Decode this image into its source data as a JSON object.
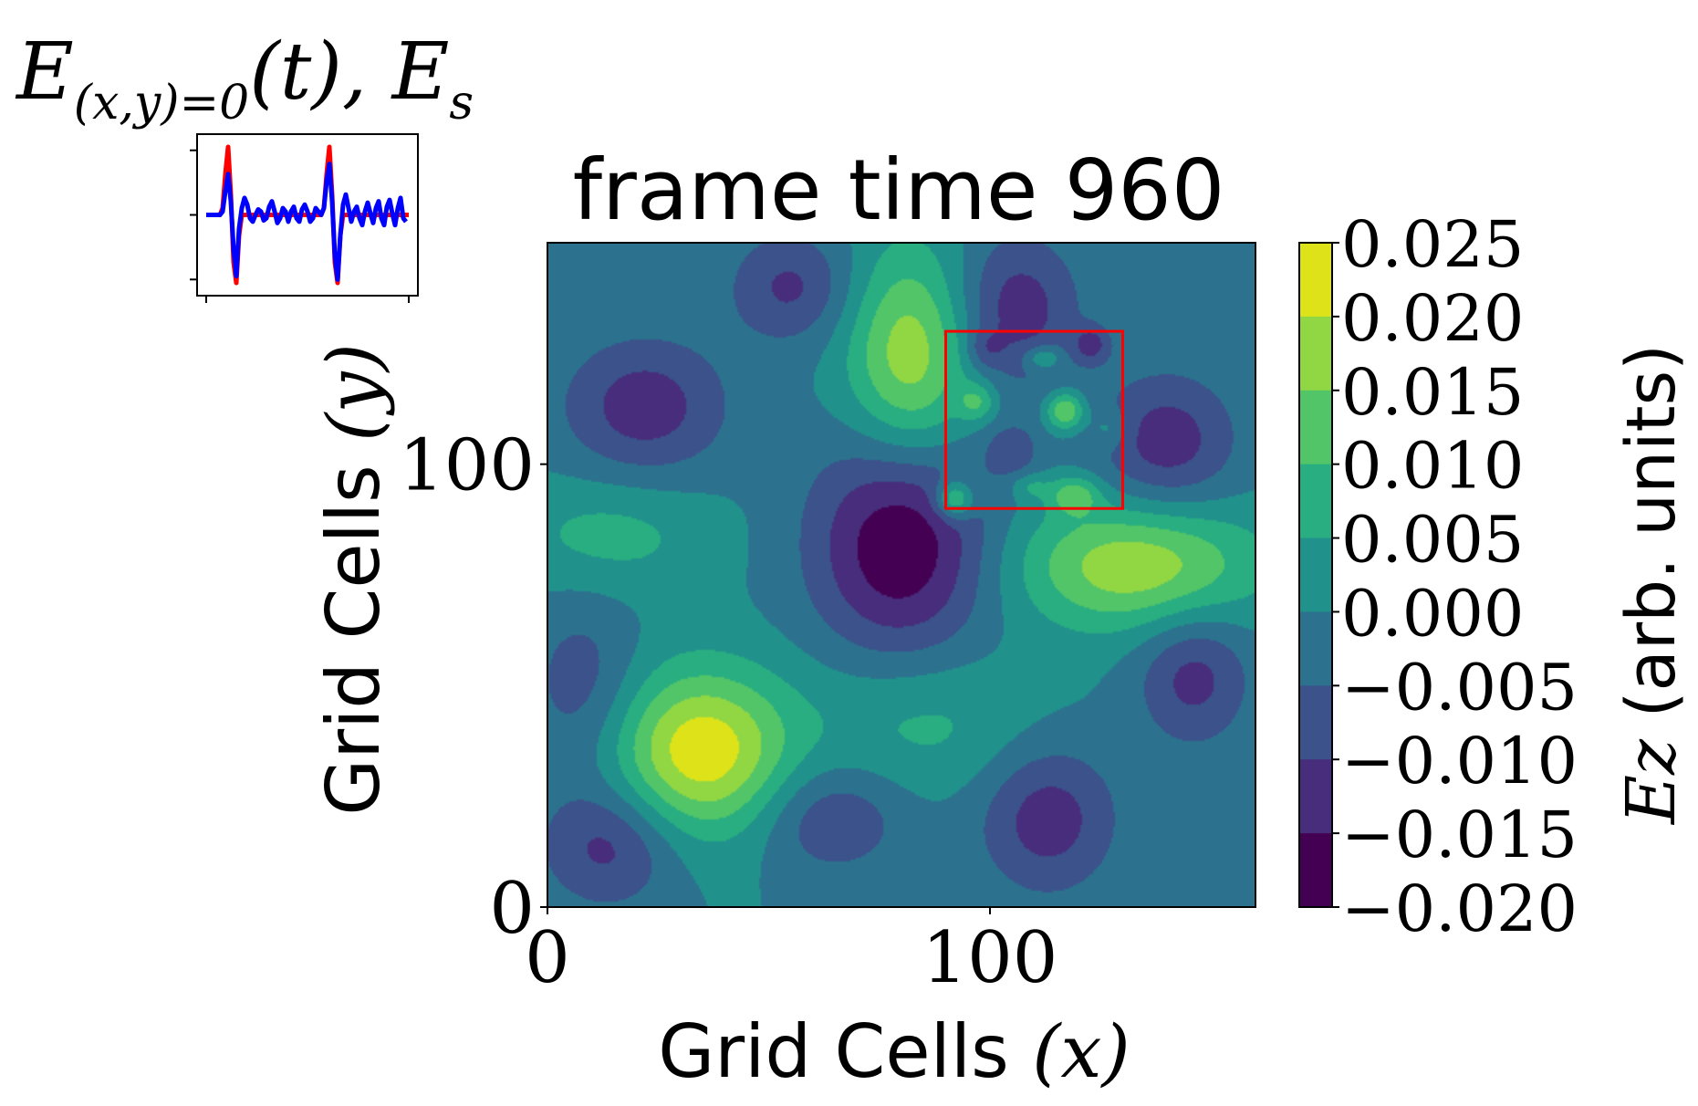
{
  "chart_data": [
    {
      "type": "line",
      "title_main": "E",
      "title_sub": "(x,y)=0",
      "title_rest": "(t), E",
      "title_sub2": "s",
      "series": [
        {
          "color": "#ff0000",
          "values": [
            0,
            0,
            0,
            0,
            0,
            0,
            0.1,
            0.6,
            1.0,
            0.3,
            -0.7,
            -1.0,
            -0.3,
            0,
            0,
            0,
            0,
            0,
            0,
            0,
            0,
            0,
            0,
            0,
            0,
            0,
            0,
            0,
            0,
            0,
            0,
            0,
            0,
            0,
            0,
            0,
            0,
            0,
            0,
            0,
            0,
            0,
            0,
            0.1,
            0.6,
            1.0,
            0.3,
            -0.7,
            -1.0,
            -0.3,
            0,
            0,
            0,
            0,
            0,
            0,
            0,
            0,
            0,
            0,
            0,
            0,
            0,
            0,
            0,
            0,
            0,
            0,
            0,
            0,
            0,
            0,
            0,
            0,
            0
          ]
        },
        {
          "color": "#0000ff",
          "values": [
            0,
            0,
            0,
            0,
            0,
            0,
            0.05,
            0.35,
            0.6,
            0.2,
            -0.5,
            -0.9,
            -0.2,
            0.1,
            0.25,
            0.15,
            -0.05,
            -0.1,
            0,
            0.08,
            0.05,
            -0.08,
            -0.05,
            0.12,
            0.2,
            0.05,
            -0.12,
            -0.05,
            0.1,
            0.05,
            -0.1,
            0.05,
            0.12,
            -0.05,
            -0.1,
            0.08,
            0.15,
            0.05,
            -0.1,
            -0.05,
            0.1,
            0.05,
            0,
            0.1,
            0.5,
            0.75,
            0.2,
            -0.6,
            -0.95,
            -0.3,
            0.15,
            0.3,
            0.1,
            -0.1,
            0.05,
            0.12,
            -0.05,
            -0.15,
            0.05,
            0.18,
            0.02,
            -0.12,
            0.1,
            0.2,
            -0.05,
            -0.15,
            0.12,
            0.22,
            0.02,
            -0.15,
            0.1,
            0.25,
            -0.05,
            -0.1
          ]
        }
      ]
    },
    {
      "type": "heatmap",
      "title": "frame time 960",
      "xlabel_text": "Grid Cells ",
      "xlabel_var": "(x)",
      "ylabel_text": "Grid Cells ",
      "ylabel_var": "(y)",
      "xlim": [
        0,
        160
      ],
      "ylim": [
        0,
        150
      ],
      "xticks": [
        0,
        100
      ],
      "yticks": [
        0,
        100
      ],
      "highlight_box": {
        "x": [
          90,
          130
        ],
        "y": [
          90,
          130
        ],
        "color": "#ff0000"
      },
      "colorbar": {
        "label_math": "Ez",
        "label_text": " (arb. units)",
        "ticks": [
          "0.025",
          "0.020",
          "0.015",
          "0.010",
          "0.005",
          "0.000",
          "−0.005",
          "−0.010",
          "−0.015",
          "−0.020"
        ],
        "levels": [
          0.025,
          0.02,
          0.015,
          0.01,
          0.005,
          0.0,
          -0.005,
          -0.01,
          -0.015,
          -0.02
        ],
        "colors": [
          "#dde318",
          "#90d743",
          "#52c569",
          "#28ae80",
          "#21918c",
          "#2c728e",
          "#3b528b",
          "#472d7b",
          "#440154"
        ]
      },
      "field_sources": [
        {
          "x": 35,
          "y": 35,
          "value": 0.024,
          "sx": 14,
          "sy": 13
        },
        {
          "x": 82,
          "y": 124,
          "value": 0.019,
          "sx": 10,
          "sy": 17
        },
        {
          "x": 133,
          "y": 77,
          "value": 0.019,
          "sx": 19,
          "sy": 10
        },
        {
          "x": 80,
          "y": 82,
          "value": -0.02,
          "sx": 14,
          "sy": 18
        },
        {
          "x": 22,
          "y": 113,
          "value": -0.013,
          "sx": 13,
          "sy": 11
        },
        {
          "x": 55,
          "y": 140,
          "value": -0.011,
          "sx": 10,
          "sy": 9
        },
        {
          "x": 106,
          "y": 135,
          "value": -0.013,
          "sx": 10,
          "sy": 12
        },
        {
          "x": 140,
          "y": 105,
          "value": -0.013,
          "sx": 11,
          "sy": 11
        },
        {
          "x": 146,
          "y": 52,
          "value": -0.012,
          "sx": 9,
          "sy": 11
        },
        {
          "x": 113,
          "y": 20,
          "value": -0.013,
          "sx": 11,
          "sy": 12
        },
        {
          "x": 14,
          "y": 14,
          "value": -0.012,
          "sx": 11,
          "sy": 10
        },
        {
          "x": 8,
          "y": 50,
          "value": -0.008,
          "sx": 9,
          "sy": 14
        },
        {
          "x": 14,
          "y": 84,
          "value": 0.007,
          "sx": 16,
          "sy": 9
        },
        {
          "x": 85,
          "y": 42,
          "value": 0.007,
          "sx": 18,
          "sy": 12
        },
        {
          "x": 64,
          "y": 20,
          "value": -0.01,
          "sx": 12,
          "sy": 9
        },
        {
          "x": 92,
          "y": 92,
          "value": 0.017,
          "sx": 3,
          "sy": 3
        },
        {
          "x": 117,
          "y": 112,
          "value": 0.017,
          "sx": 3,
          "sy": 3
        },
        {
          "x": 119,
          "y": 93,
          "value": 0.012,
          "sx": 4,
          "sy": 3
        },
        {
          "x": 97,
          "y": 114,
          "value": 0.01,
          "sx": 3,
          "sy": 3
        },
        {
          "x": 123,
          "y": 127,
          "value": -0.01,
          "sx": 3,
          "sy": 3
        },
        {
          "x": 105,
          "y": 103,
          "value": -0.008,
          "sx": 4,
          "sy": 4
        },
        {
          "x": 112,
          "y": 124,
          "value": 0.01,
          "sx": 3,
          "sy": 2
        },
        {
          "x": 127,
          "y": 108,
          "value": 0.006,
          "sx": 3,
          "sy": 3
        },
        {
          "x": 99,
          "y": 126,
          "value": -0.006,
          "sx": 3,
          "sy": 3
        },
        {
          "x": 109,
          "y": 95,
          "value": 0.006,
          "sx": 3,
          "sy": 2
        }
      ]
    }
  ]
}
